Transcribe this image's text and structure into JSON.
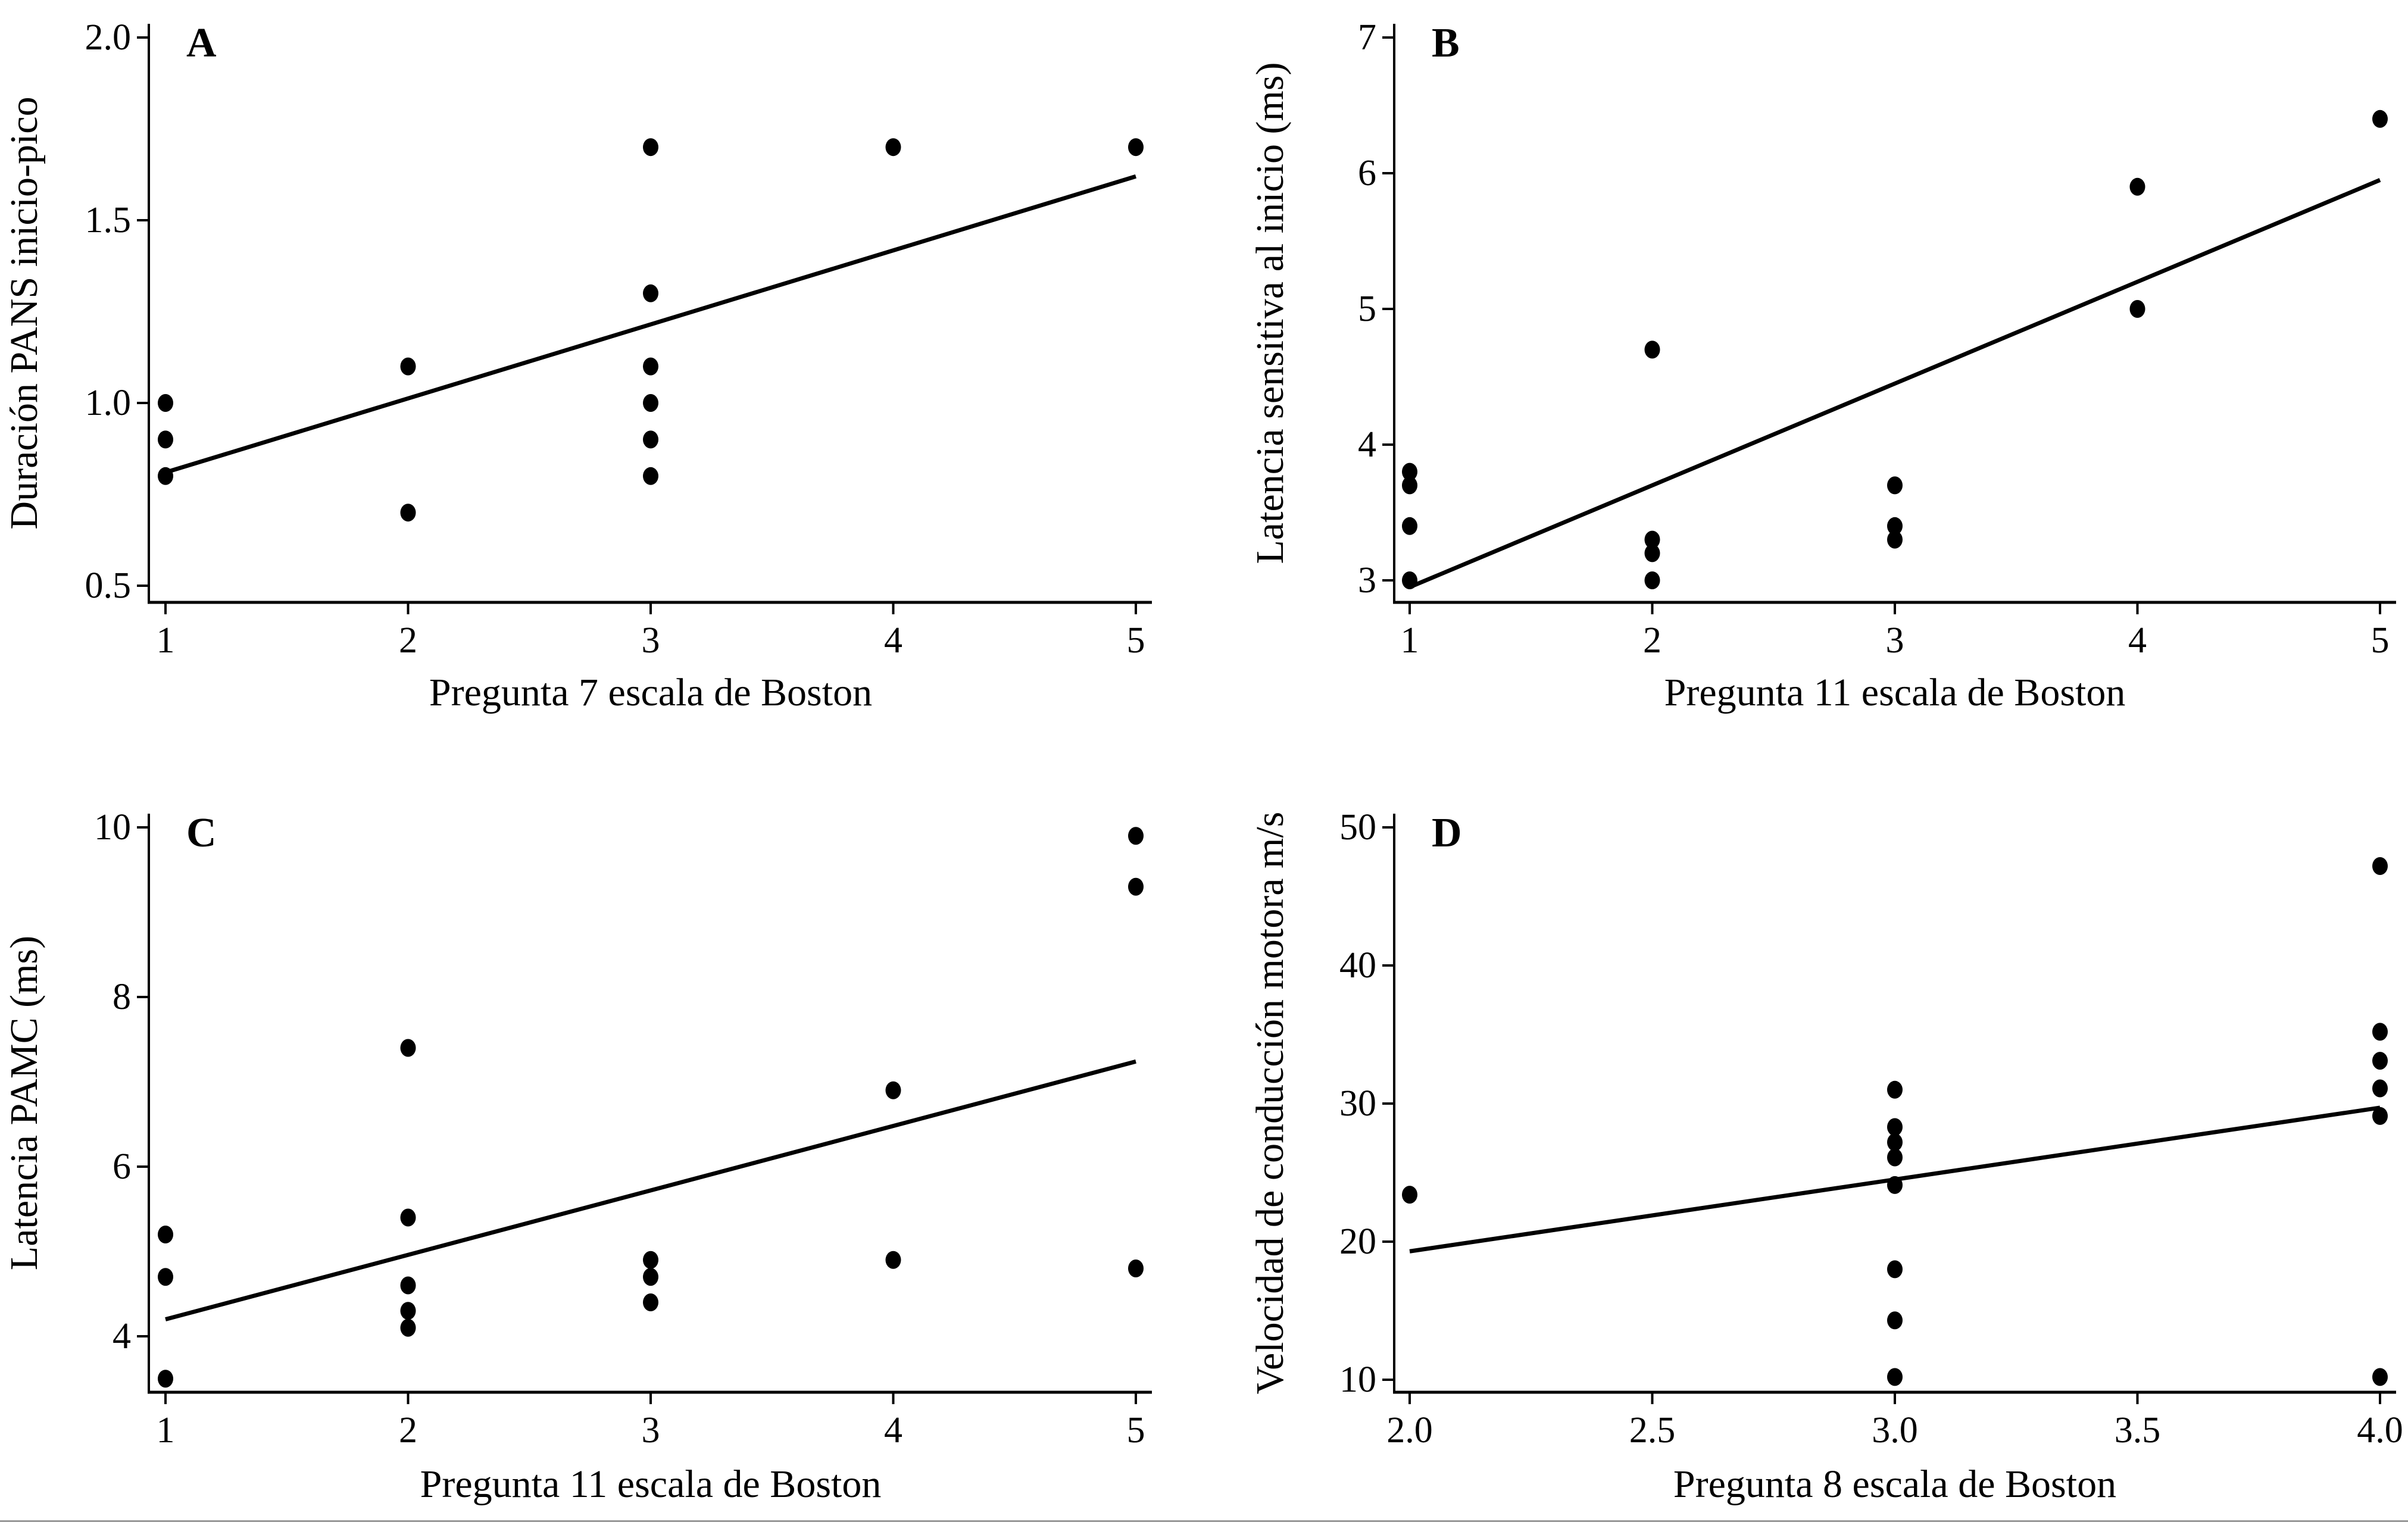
{
  "figure": {
    "colors": {
      "points": "#000000",
      "fit_line": "#000000",
      "axes": "#000000",
      "background": "#ffffff"
    }
  },
  "chart_data": [
    {
      "id": "A",
      "type": "scatter",
      "panel_label": "A",
      "title": "",
      "xlabel": "Pregunta 7 escala de Boston",
      "ylabel": "Duración PANS inicio-pico",
      "xlim": [
        1,
        5
      ],
      "ylim": [
        0.5,
        2.0
      ],
      "xticks": [
        1,
        2,
        3,
        4,
        5
      ],
      "xtick_labels": [
        "1",
        "2",
        "3",
        "4",
        "5"
      ],
      "yticks": [
        0.5,
        1.0,
        1.5,
        2.0
      ],
      "ytick_labels": [
        "0.5",
        "1.0",
        "1.5",
        "2.0"
      ],
      "grid": false,
      "points": [
        {
          "x": 1,
          "y": 1.0
        },
        {
          "x": 1,
          "y": 0.9
        },
        {
          "x": 1,
          "y": 0.8
        },
        {
          "x": 2,
          "y": 1.1
        },
        {
          "x": 2,
          "y": 0.7
        },
        {
          "x": 3,
          "y": 1.7
        },
        {
          "x": 3,
          "y": 1.3
        },
        {
          "x": 3,
          "y": 1.1
        },
        {
          "x": 3,
          "y": 1.0
        },
        {
          "x": 3,
          "y": 0.9
        },
        {
          "x": 3,
          "y": 0.8
        },
        {
          "x": 4,
          "y": 1.7
        },
        {
          "x": 5,
          "y": 1.7
        }
      ],
      "fit_line": {
        "x": [
          1,
          5
        ],
        "y": [
          0.81,
          1.62
        ]
      }
    },
    {
      "id": "B",
      "type": "scatter",
      "panel_label": "B",
      "title": "",
      "xlabel": "Pregunta 11 escala de Boston",
      "ylabel": "Latencia sensitiva al inicio (ms)",
      "xlim": [
        1,
        5
      ],
      "ylim": [
        3,
        7
      ],
      "xticks": [
        1,
        2,
        3,
        4,
        5
      ],
      "xtick_labels": [
        "1",
        "2",
        "3",
        "4",
        "5"
      ],
      "yticks": [
        3,
        4,
        5,
        6,
        7
      ],
      "ytick_labels": [
        "3",
        "4",
        "5",
        "6",
        "7"
      ],
      "grid": false,
      "points": [
        {
          "x": 1,
          "y": 3.8
        },
        {
          "x": 1,
          "y": 3.7
        },
        {
          "x": 1,
          "y": 3.4
        },
        {
          "x": 1,
          "y": 3.0
        },
        {
          "x": 2,
          "y": 4.7
        },
        {
          "x": 2,
          "y": 3.3
        },
        {
          "x": 2,
          "y": 3.2
        },
        {
          "x": 2,
          "y": 3.0
        },
        {
          "x": 3,
          "y": 3.7
        },
        {
          "x": 3,
          "y": 3.4
        },
        {
          "x": 3,
          "y": 3.3
        },
        {
          "x": 4,
          "y": 5.9
        },
        {
          "x": 4,
          "y": 5.0
        },
        {
          "x": 5,
          "y": 6.4
        }
      ],
      "fit_line": {
        "x": [
          1,
          5
        ],
        "y": [
          2.95,
          5.95
        ]
      }
    },
    {
      "id": "C",
      "type": "scatter",
      "panel_label": "C",
      "title": "",
      "xlabel": "Pregunta 11 escala de Boston",
      "ylabel": "Latencia PAMC (ms)",
      "xlim": [
        1,
        5
      ],
      "ylim": [
        4,
        10
      ],
      "xticks": [
        1,
        2,
        3,
        4,
        5
      ],
      "xtick_labels": [
        "1",
        "2",
        "3",
        "4",
        "5"
      ],
      "yticks": [
        4,
        6,
        8,
        10
      ],
      "ytick_labels": [
        "4",
        "6",
        "8",
        "10"
      ],
      "grid": false,
      "points": [
        {
          "x": 1,
          "y": 5.2
        },
        {
          "x": 1,
          "y": 4.7
        },
        {
          "x": 1,
          "y": 3.5
        },
        {
          "x": 2,
          "y": 7.4
        },
        {
          "x": 2,
          "y": 5.4
        },
        {
          "x": 2,
          "y": 4.6
        },
        {
          "x": 2,
          "y": 4.3
        },
        {
          "x": 2,
          "y": 4.1
        },
        {
          "x": 3,
          "y": 4.9
        },
        {
          "x": 3,
          "y": 4.7
        },
        {
          "x": 3,
          "y": 4.4
        },
        {
          "x": 4,
          "y": 6.9
        },
        {
          "x": 4,
          "y": 4.9
        },
        {
          "x": 5,
          "y": 9.9
        },
        {
          "x": 5,
          "y": 9.3
        },
        {
          "x": 5,
          "y": 4.8
        }
      ],
      "fit_line": {
        "x": [
          1,
          5
        ],
        "y": [
          4.2,
          7.24
        ]
      }
    },
    {
      "id": "D",
      "type": "scatter",
      "panel_label": "D",
      "title": "",
      "xlabel": "Pregunta 8 escala de Boston",
      "ylabel": "Velocidad de conducción motora m/s",
      "xlim": [
        2.0,
        4.0
      ],
      "ylim": [
        10,
        50
      ],
      "xticks": [
        2.0,
        2.5,
        3.0,
        3.5,
        4.0
      ],
      "xtick_labels": [
        "2.0",
        "2.5",
        "3.0",
        "3.5",
        "4.0"
      ],
      "yticks": [
        10,
        20,
        30,
        40,
        50
      ],
      "ytick_labels": [
        "10",
        "20",
        "30",
        "40",
        "50"
      ],
      "grid": false,
      "points": [
        {
          "x": 2.0,
          "y": 23.4
        },
        {
          "x": 3.0,
          "y": 31.0
        },
        {
          "x": 3.0,
          "y": 28.3
        },
        {
          "x": 3.0,
          "y": 27.2
        },
        {
          "x": 3.0,
          "y": 26.1
        },
        {
          "x": 3.0,
          "y": 24.1
        },
        {
          "x": 3.0,
          "y": 18.0
        },
        {
          "x": 3.0,
          "y": 14.3
        },
        {
          "x": 3.0,
          "y": 10.2
        },
        {
          "x": 4.0,
          "y": 47.2
        },
        {
          "x": 4.0,
          "y": 35.2
        },
        {
          "x": 4.0,
          "y": 33.1
        },
        {
          "x": 4.0,
          "y": 31.1
        },
        {
          "x": 4.0,
          "y": 29.1
        },
        {
          "x": 4.0,
          "y": 10.2
        }
      ],
      "fit_line": {
        "x": [
          2.0,
          4.0
        ],
        "y": [
          19.3,
          29.7
        ]
      }
    }
  ]
}
